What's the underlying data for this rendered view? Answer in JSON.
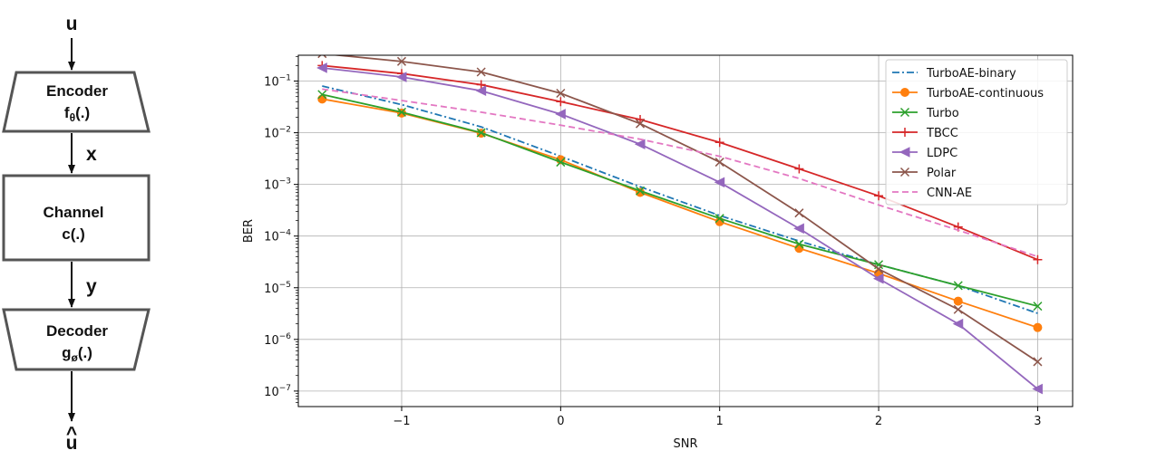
{
  "diagram": {
    "input": "u",
    "blocks": [
      {
        "name": "encoder",
        "label": "Encoder",
        "func": "f",
        "sub": "θ",
        "arg": "(.)"
      },
      {
        "name": "channel",
        "label": "Channel",
        "func": "c(.)"
      },
      {
        "name": "decoder",
        "label": "Decoder",
        "func": "g",
        "sub": "ø",
        "arg": "(.)"
      }
    ],
    "signals": [
      "x",
      "y"
    ],
    "output_base": "u",
    "output_hat": "^"
  },
  "chart_data": {
    "type": "line",
    "title": "",
    "xlabel": "SNR",
    "ylabel": "BER",
    "xlim": [
      -1.65,
      3.22
    ],
    "ylim_log10": [
      -7.3,
      -0.5
    ],
    "yscale": "log",
    "grid": true,
    "legend_position": "top-right",
    "xticks": [
      -1,
      0,
      1,
      2,
      3
    ],
    "xtick_labels": [
      "−1",
      "0",
      "1",
      "2",
      "3"
    ],
    "yticks_exp": [
      -1,
      -2,
      -3,
      -4,
      -5,
      -6,
      -7
    ],
    "ytick_base": "10",
    "series": [
      {
        "name": "TurboAE-binary",
        "color": "#1f77b4",
        "style": "dashdot",
        "marker": "none",
        "x": [
          -1.5,
          -1,
          -0.5,
          0,
          0.5,
          1,
          1.5,
          2,
          2.5,
          3
        ],
        "y": [
          0.08,
          0.035,
          0.013,
          0.0035,
          0.0009,
          0.00025,
          8e-05,
          2.8e-05,
          1.1e-05,
          3.2e-06
        ]
      },
      {
        "name": "TurboAE-continuous",
        "color": "#ff7f0e",
        "style": "solid",
        "marker": "circle",
        "x": [
          -1.5,
          -1,
          -0.5,
          0,
          0.5,
          1,
          1.5,
          2,
          2.5,
          3
        ],
        "y": [
          0.045,
          0.024,
          0.0098,
          0.003,
          0.0007,
          0.00019,
          5.8e-05,
          1.9e-05,
          5.5e-06,
          1.7e-06
        ]
      },
      {
        "name": "Turbo",
        "color": "#2ca02c",
        "style": "solid",
        "marker": "x",
        "x": [
          -1.5,
          -1,
          -0.5,
          0,
          0.5,
          1,
          1.5,
          2,
          2.5,
          3
        ],
        "y": [
          0.055,
          0.025,
          0.01,
          0.0027,
          0.00075,
          0.00022,
          7e-05,
          2.8e-05,
          1.1e-05,
          4.4e-06
        ]
      },
      {
        "name": "TBCC",
        "color": "#d62728",
        "style": "solid",
        "marker": "plus",
        "x": [
          -1.5,
          -1,
          -0.5,
          0,
          0.5,
          1,
          1.5,
          2,
          2.5,
          3
        ],
        "y": [
          0.2,
          0.14,
          0.085,
          0.04,
          0.018,
          0.0065,
          0.002,
          0.0006,
          0.00015,
          3.5e-05
        ]
      },
      {
        "name": "LDPC",
        "color": "#9467bd",
        "style": "solid",
        "marker": "triangle-left",
        "x": [
          -1.5,
          -1,
          -0.5,
          0,
          0.5,
          1,
          1.5,
          2,
          2.5,
          3
        ],
        "y": [
          0.18,
          0.12,
          0.065,
          0.023,
          0.006,
          0.0011,
          0.00014,
          1.5e-05,
          2e-06,
          1.1e-07
        ]
      },
      {
        "name": "Polar",
        "color": "#8c564b",
        "style": "solid",
        "marker": "x",
        "x": [
          -1.5,
          -1,
          -0.5,
          0,
          0.5,
          1,
          1.5,
          2,
          2.5,
          3
        ],
        "y": [
          0.34,
          0.24,
          0.15,
          0.058,
          0.015,
          0.0027,
          0.00028,
          2.3e-05,
          3.8e-06,
          3.7e-07
        ]
      },
      {
        "name": "CNN-AE",
        "color": "#e377c2",
        "style": "dashed",
        "marker": "none",
        "x": [
          -1.5,
          -1,
          -0.5,
          0,
          0.5,
          1,
          1.5,
          2,
          2.5,
          3
        ],
        "y": [
          0.07,
          0.042,
          0.025,
          0.014,
          0.0075,
          0.0035,
          0.0013,
          0.0004,
          0.00013,
          4e-05
        ]
      }
    ]
  }
}
